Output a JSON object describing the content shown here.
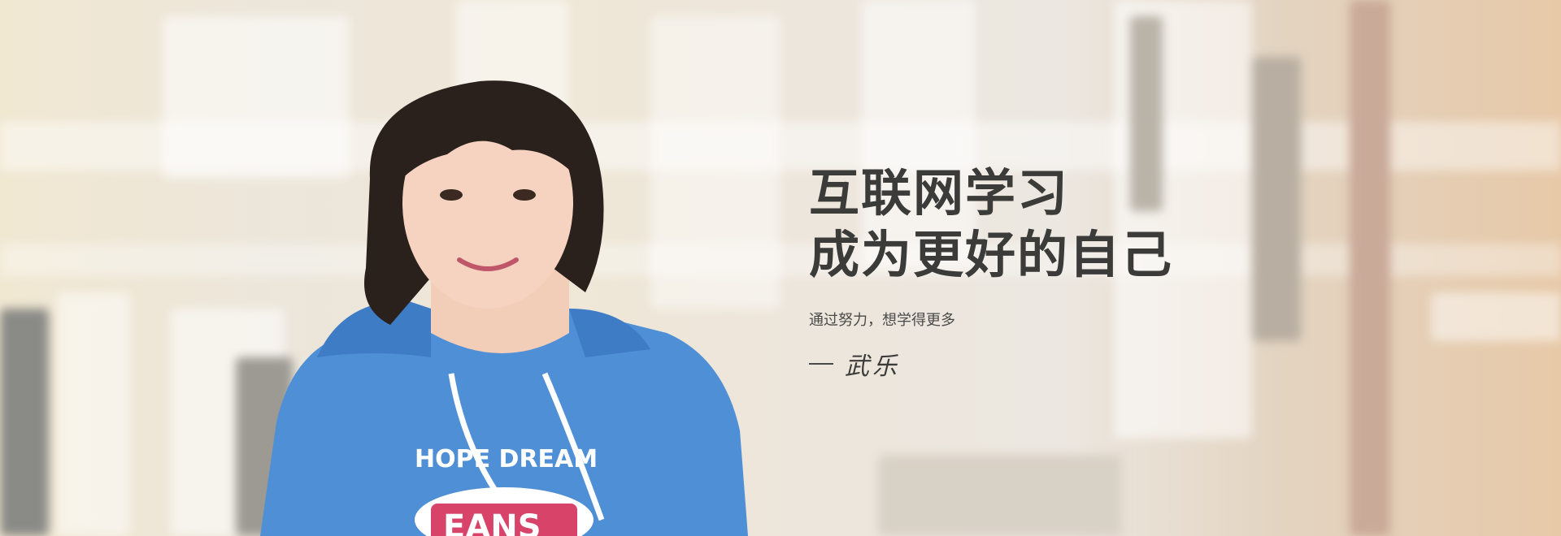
{
  "hero": {
    "headline_line1": "互联网学习",
    "headline_line2": "成为更好的自己",
    "subline": "通过努力，想学得更多",
    "signature_name": "武乐",
    "text_color": "#3b3b39"
  },
  "hoodie": {
    "print_arc": "HOPE DREAM",
    "print_badge": "EANS",
    "color": "#4f8fd6",
    "badge_color": "#d8436a"
  }
}
